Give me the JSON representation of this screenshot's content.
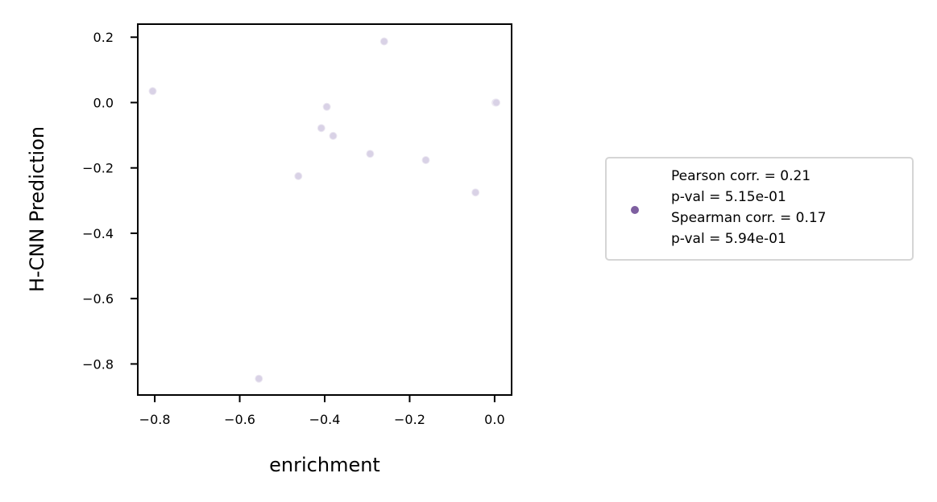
{
  "chart_data": {
    "type": "scatter",
    "title": "",
    "xlabel": "enrichment",
    "ylabel": "H-CNN Prediction",
    "xlim": [
      -0.84,
      0.04
    ],
    "ylim": [
      -0.895,
      0.24
    ],
    "xticks": [
      -0.8,
      -0.6,
      -0.4,
      -0.2,
      0.0
    ],
    "xtick_labels": [
      "−0.8",
      "−0.6",
      "−0.4",
      "−0.2",
      "0.0"
    ],
    "yticks": [
      0.2,
      0.0,
      -0.2,
      -0.4,
      -0.6,
      -0.8
    ],
    "ytick_labels": [
      "0.2",
      "0.0",
      "−0.2",
      "−0.4",
      "−0.6",
      "−0.8"
    ],
    "grid": false,
    "legend_position": "right-outside",
    "series": [
      {
        "marker_color": "#7e5fa0",
        "point_color": "#d9d2e6",
        "points": [
          {
            "x": -0.805,
            "y": 0.035
          },
          {
            "x": -0.26,
            "y": 0.187
          },
          {
            "x": -0.395,
            "y": -0.013
          },
          {
            "x": -0.408,
            "y": -0.078
          },
          {
            "x": -0.38,
            "y": -0.102
          },
          {
            "x": -0.293,
            "y": -0.157
          },
          {
            "x": -0.162,
            "y": -0.176
          },
          {
            "x": -0.462,
            "y": -0.225
          },
          {
            "x": -0.045,
            "y": -0.275
          },
          {
            "x": 0.002,
            "y": 0.0
          },
          {
            "x": 0.004,
            "y": 0.0
          },
          {
            "x": -0.555,
            "y": -0.845
          }
        ]
      }
    ],
    "legend": {
      "lines": [
        "Pearson corr. = 0.21",
        "p-val = 5.15e-01",
        "Spearman corr. = 0.17",
        "p-val = 5.94e-01"
      ]
    }
  }
}
